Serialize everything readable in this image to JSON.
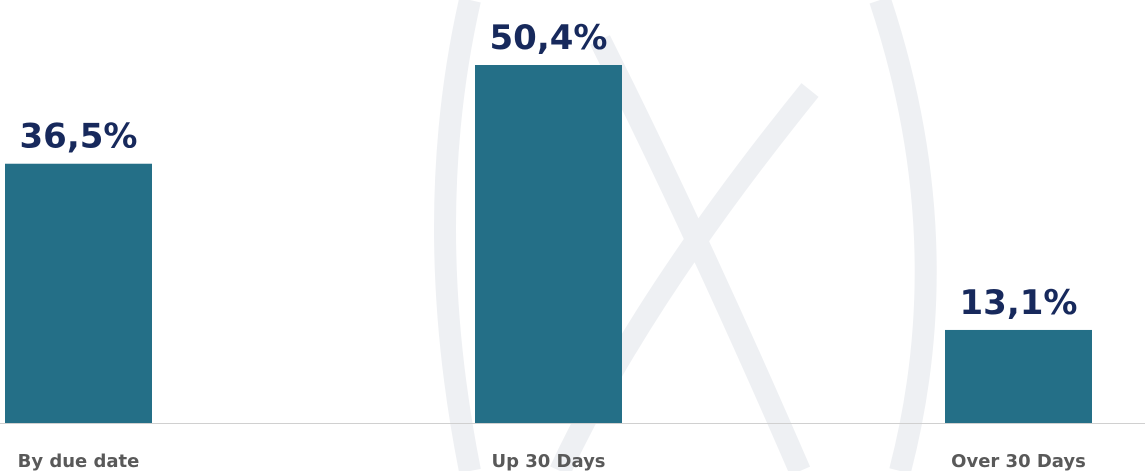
{
  "chart_data": {
    "type": "bar",
    "categories": [
      "By due date",
      "Up 30 Days",
      "Over 30 Days"
    ],
    "values": [
      36.5,
      50.4,
      13.1
    ],
    "value_labels": [
      "36,5%",
      "50,4%",
      "13,1%"
    ],
    "color": "#246f87"
  }
}
